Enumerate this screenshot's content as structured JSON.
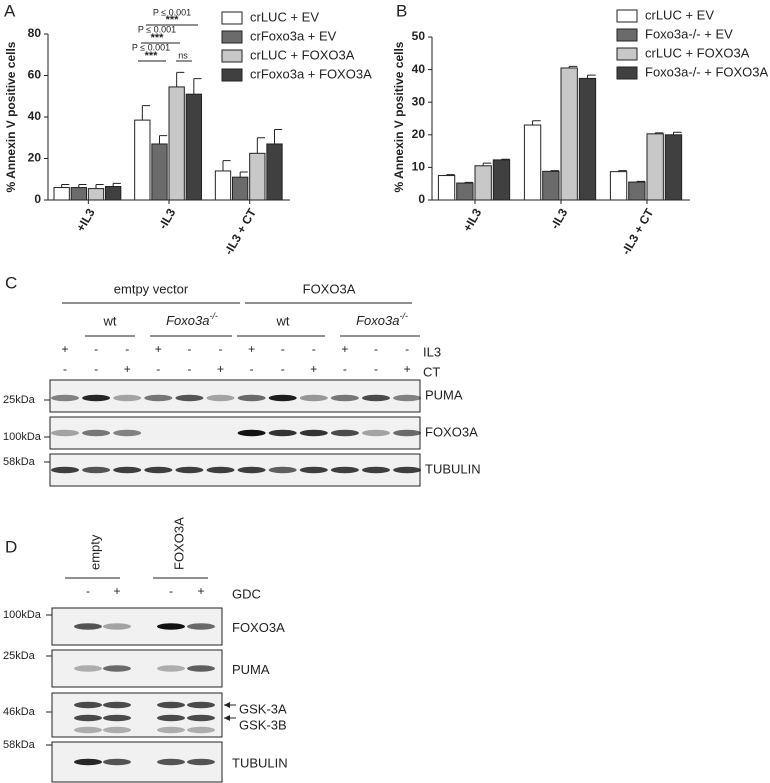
{
  "chart_data": [
    {
      "type": "bar",
      "panel": "A",
      "ylabel": "%  Annexin V positive cells",
      "categories": [
        "+IL3",
        "-IL3",
        "-IL3 + CT"
      ],
      "ylim": [
        0,
        80
      ],
      "yticks": [
        0,
        20,
        40,
        60,
        80
      ],
      "series": [
        {
          "name": "crLUC + EV",
          "color": "#ffffff",
          "values": [
            6,
            38.5,
            14
          ],
          "errors": [
            1.5,
            7,
            5
          ]
        },
        {
          "name": "crFoxo3a + EV",
          "color": "#6b6b6b",
          "values": [
            6,
            27,
            11
          ],
          "errors": [
            1.5,
            4,
            2.5
          ]
        },
        {
          "name": "crLUC + FOXO3A",
          "color": "#c8c8c8",
          "values": [
            5.5,
            54.5,
            22.5
          ],
          "errors": [
            2,
            7,
            7.5
          ]
        },
        {
          "name": "crFoxo3a + FOXO3A",
          "color": "#404040",
          "values": [
            6.5,
            51,
            27
          ],
          "errors": [
            1.5,
            7.5,
            7
          ]
        }
      ],
      "annotations": [
        "P ≤ 0.001",
        "***",
        "P ≤ 0.001",
        "***",
        "P ≤ 0.001",
        "***",
        "ns"
      ]
    },
    {
      "type": "bar",
      "panel": "B",
      "ylabel": "%  Annexin V positive cells",
      "categories": [
        "+IL3",
        "-IL3",
        "-IL3 + CT"
      ],
      "ylim": [
        0,
        50
      ],
      "yticks": [
        0,
        10,
        20,
        30,
        40,
        50
      ],
      "series": [
        {
          "name": "crLUC + EV",
          "color": "#ffffff",
          "values": [
            7.5,
            23,
            8.7
          ],
          "errors": [
            0.3,
            1.3,
            0.3
          ]
        },
        {
          "name": "Foxo3a-/- + EV",
          "color": "#6b6b6b",
          "values": [
            5.2,
            8.8,
            5.5
          ],
          "errors": [
            0.2,
            0.2,
            0.2
          ]
        },
        {
          "name": "crLUC + FOXO3A",
          "color": "#c8c8c8",
          "values": [
            10.5,
            40.5,
            20.3
          ],
          "errors": [
            0.8,
            0.5,
            0.3
          ]
        },
        {
          "name": "Foxo3a-/- + FOXO3A",
          "color": "#404040",
          "values": [
            12.3,
            37.3,
            20
          ],
          "errors": [
            0.2,
            1,
            0.8
          ]
        }
      ]
    }
  ],
  "panel_c": {
    "letter": "C",
    "groups": [
      "emtpy vector",
      "FOXO3A"
    ],
    "subgroups": [
      {
        "text": "wt"
      },
      {
        "gene": "Foxo3a",
        "sup": "-/-"
      },
      {
        "text": "wt"
      },
      {
        "gene": "Foxo3a",
        "sup": "-/-"
      }
    ],
    "rows": [
      {
        "name": "IL3",
        "signs": [
          "+",
          "-",
          "-",
          "+",
          "-",
          "-",
          "+",
          "-",
          "-",
          "+",
          "-",
          "-"
        ]
      },
      {
        "name": "CT",
        "signs": [
          "-",
          "-",
          "+",
          "-",
          "-",
          "+",
          "-",
          "-",
          "+",
          "-",
          "-",
          "+"
        ]
      }
    ],
    "blots": [
      {
        "marker": "25kDa",
        "name": "PUMA"
      },
      {
        "marker": "100kDa",
        "name": "FOXO3A"
      },
      {
        "marker": "58kDa",
        "name": "TUBULIN"
      }
    ]
  },
  "panel_d": {
    "letter": "D",
    "groups": [
      "empty",
      "FOXO3A"
    ],
    "row": {
      "name": "GDC",
      "signs": [
        "-",
        "+",
        "-",
        "+"
      ]
    },
    "blots": [
      {
        "marker": "100kDa",
        "names": [
          "FOXO3A"
        ]
      },
      {
        "marker": "25kDa",
        "names": [
          "PUMA"
        ]
      },
      {
        "marker": "46kDa",
        "names": [
          "GSK-3A",
          "GSK-3B"
        ]
      },
      {
        "marker": "58kDa",
        "names": [
          "TUBULIN"
        ]
      }
    ]
  }
}
